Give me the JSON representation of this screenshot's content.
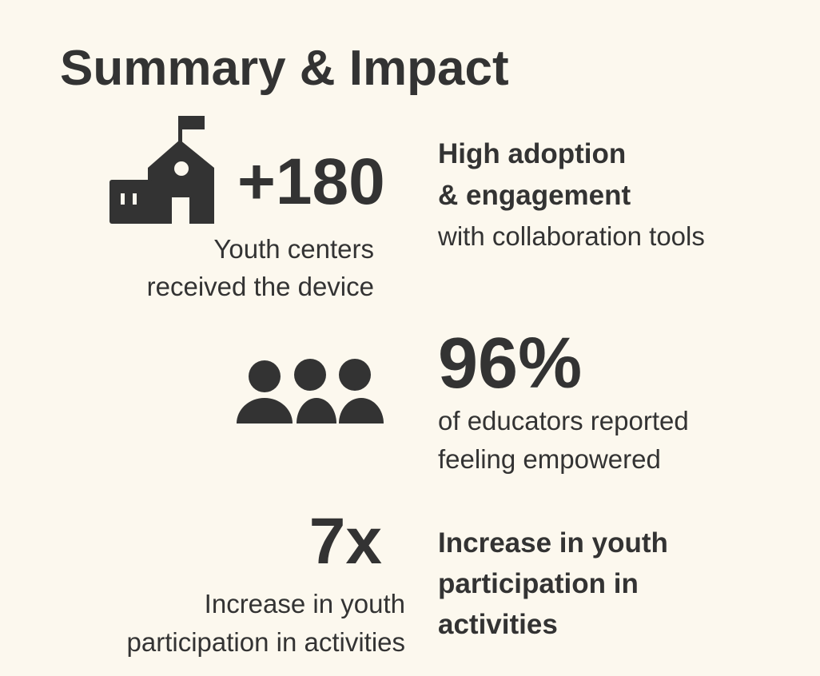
{
  "header": {
    "title": "Summary & Impact"
  },
  "blocks": [
    {
      "figure": "+180",
      "caption": [
        "Youth centers",
        "received the device"
      ]
    },
    {
      "heading": [
        "High adoption",
        "& engagement"
      ],
      "caption": [
        "with collaboration tools"
      ]
    },
    {
      "figure": "96%",
      "caption": [
        "of educators reported",
        "feeling empowered"
      ]
    },
    {
      "figure": "7x",
      "caption": [
        "Increase in youth",
        "participation in activities"
      ]
    },
    {
      "heading": [
        "Increase in youth",
        "participation in",
        "activities"
      ]
    }
  ]
}
